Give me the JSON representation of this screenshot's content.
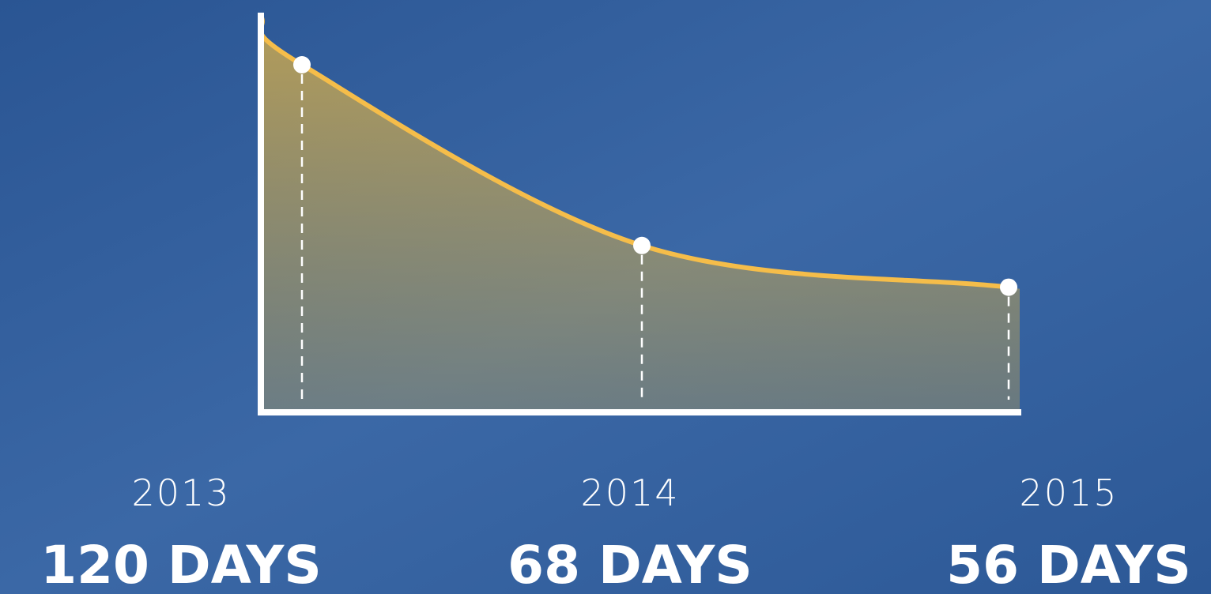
{
  "chart_data": {
    "type": "line",
    "categories": [
      "2013",
      "2014",
      "2015"
    ],
    "values": [
      120,
      68,
      56
    ],
    "value_labels": [
      "120 DAYS",
      "68 DAYS",
      "56 DAYS"
    ],
    "color": "#f5bd4a",
    "ylim": [
      20,
      125
    ]
  }
}
